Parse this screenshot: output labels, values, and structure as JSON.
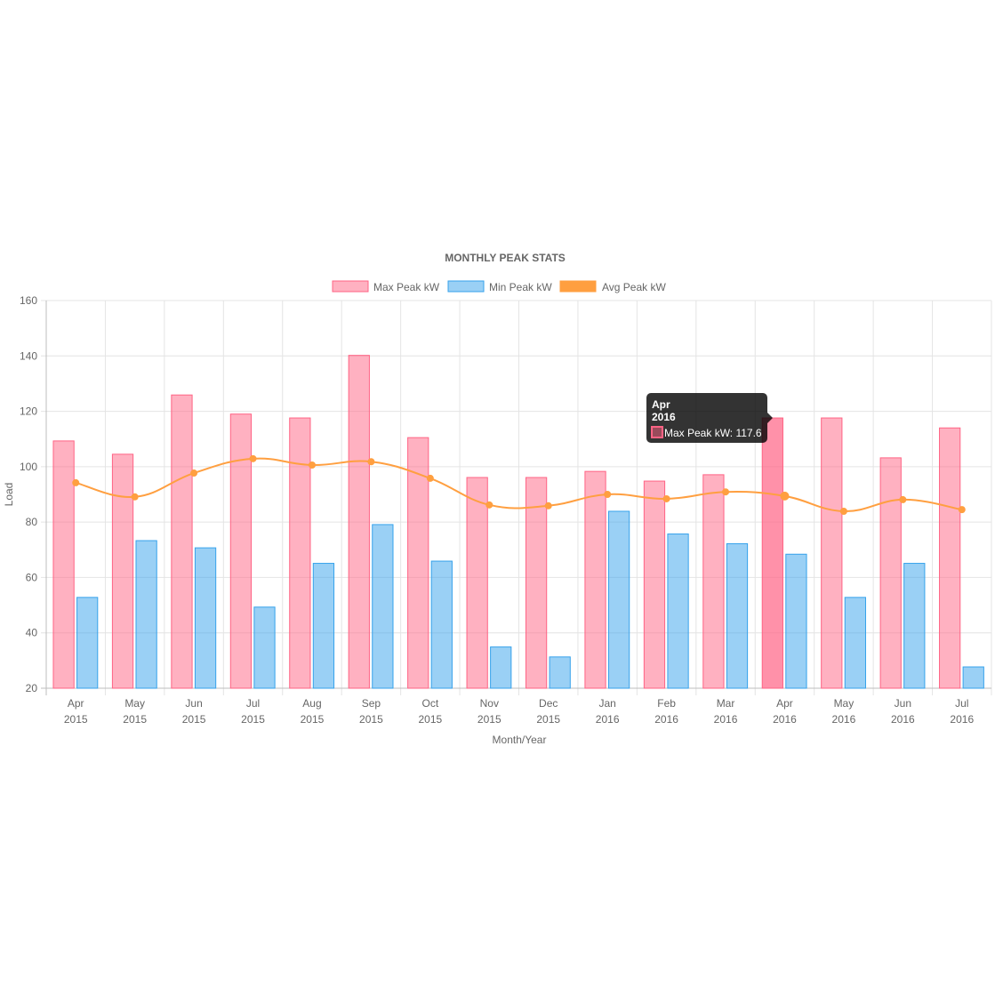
{
  "chart_data": {
    "type": "bar",
    "title": "MONTHLY PEAK STATS",
    "xlabel": "Month/Year",
    "ylabel": "Load",
    "ylim": [
      20,
      160
    ],
    "yticks": [
      20,
      40,
      60,
      80,
      100,
      120,
      140,
      160
    ],
    "grid": true,
    "legend_position": "top",
    "categories": [
      [
        "Apr",
        "2015"
      ],
      [
        "May",
        "2015"
      ],
      [
        "Jun",
        "2015"
      ],
      [
        "Jul",
        "2015"
      ],
      [
        "Aug",
        "2015"
      ],
      [
        "Sep",
        "2015"
      ],
      [
        "Oct",
        "2015"
      ],
      [
        "Nov",
        "2015"
      ],
      [
        "Dec",
        "2015"
      ],
      [
        "Jan",
        "2016"
      ],
      [
        "Feb",
        "2016"
      ],
      [
        "Mar",
        "2016"
      ],
      [
        "Apr",
        "2016"
      ],
      [
        "May",
        "2016"
      ],
      [
        "Jun",
        "2016"
      ],
      [
        "Jul",
        "2016"
      ]
    ],
    "series": [
      {
        "name": "Max Peak kW",
        "kind": "bar",
        "color": "#ff6384",
        "fill": "rgba(255,99,132,0.5)",
        "values": [
          109.3,
          104.5,
          125.9,
          119.0,
          117.6,
          140.2,
          110.5,
          96.1,
          96.1,
          98.3,
          94.8,
          97.1,
          117.6,
          117.6,
          103.2,
          114.0
        ]
      },
      {
        "name": "Min Peak kW",
        "kind": "bar",
        "color": "#36a2eb",
        "fill": "rgba(54,162,235,0.5)",
        "values": [
          52.8,
          73.3,
          70.7,
          49.3,
          65.1,
          79.1,
          65.9,
          34.9,
          31.3,
          83.9,
          75.7,
          72.2,
          68.4,
          52.8,
          65.1,
          27.7
        ]
      },
      {
        "name": "Avg Peak kW",
        "kind": "line",
        "color": "#ff9f40",
        "values": [
          94.2,
          89.1,
          97.7,
          102.9,
          100.6,
          101.8,
          95.8,
          86.2,
          85.9,
          90.0,
          88.4,
          90.9,
          89.4,
          83.9,
          88.1,
          84.5
        ]
      }
    ],
    "tooltip": {
      "category_index": 12,
      "title_line1": "Apr",
      "title_line2": "2016",
      "body": "Max Peak kW: 117.6",
      "swatch_color": "#ff6384"
    }
  }
}
